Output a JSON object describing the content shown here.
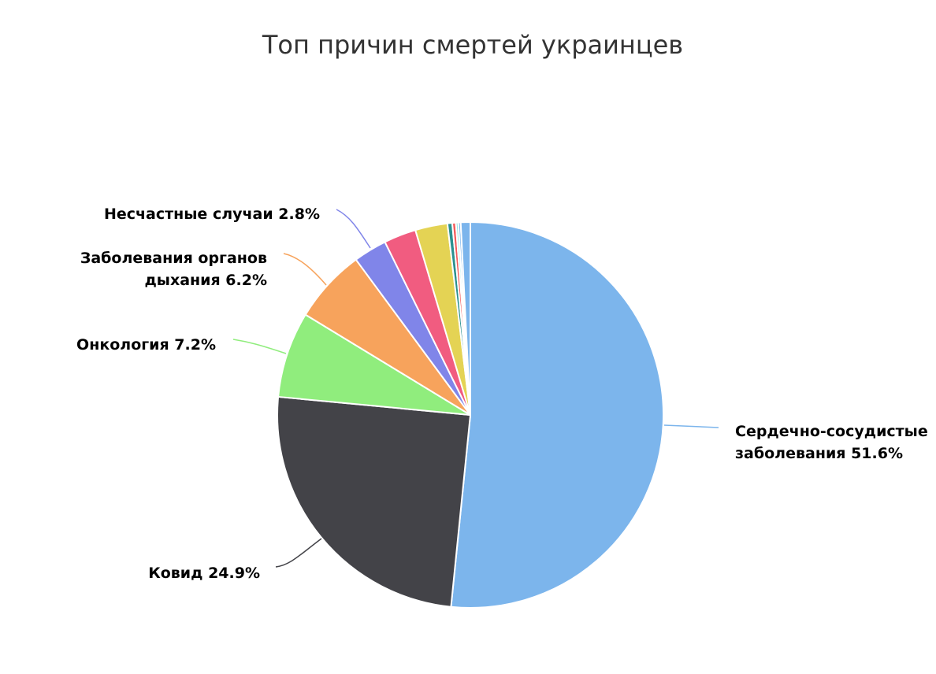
{
  "chart_data": {
    "type": "pie",
    "title": "Топ причин смертей украинцев",
    "start_angle_deg": 0,
    "direction": "clockwise",
    "slices": [
      {
        "label_lines": [
          "Сердечно-сосудистые",
          "заболевания 51.6%"
        ],
        "value": 51.6,
        "color": "#7cb5ec",
        "show_label": true
      },
      {
        "label_lines": [
          "Ковид 24.9%"
        ],
        "value": 24.9,
        "color": "#434348",
        "show_label": true
      },
      {
        "label_lines": [
          "Онкология 7.2%"
        ],
        "value": 7.2,
        "color": "#90ed7d",
        "show_label": true
      },
      {
        "label_lines": [
          "Заболевания органов",
          "дыхания 6.2%"
        ],
        "value": 6.2,
        "color": "#f7a35c",
        "show_label": true
      },
      {
        "label_lines": [
          "Несчастные случаи 2.8%"
        ],
        "value": 2.8,
        "color": "#8085e9",
        "show_label": true
      },
      {
        "label_lines": [],
        "value": 2.7,
        "color": "#f15c80",
        "show_label": false
      },
      {
        "label_lines": [],
        "value": 2.7,
        "color": "#e4d354",
        "show_label": false
      },
      {
        "label_lines": [],
        "value": 0.4,
        "color": "#2b908f",
        "show_label": false
      },
      {
        "label_lines": [],
        "value": 0.3,
        "color": "#f45b5b",
        "show_label": false
      },
      {
        "label_lines": [],
        "value": 0.2,
        "color": "#91e8e1",
        "show_label": false
      },
      {
        "label_lines": [],
        "value": 0.2,
        "color": "#7cb5ec",
        "show_label": false
      },
      {
        "label_lines": [],
        "value": 0.8,
        "color": "#7cb5ec",
        "show_label": false
      }
    ]
  }
}
